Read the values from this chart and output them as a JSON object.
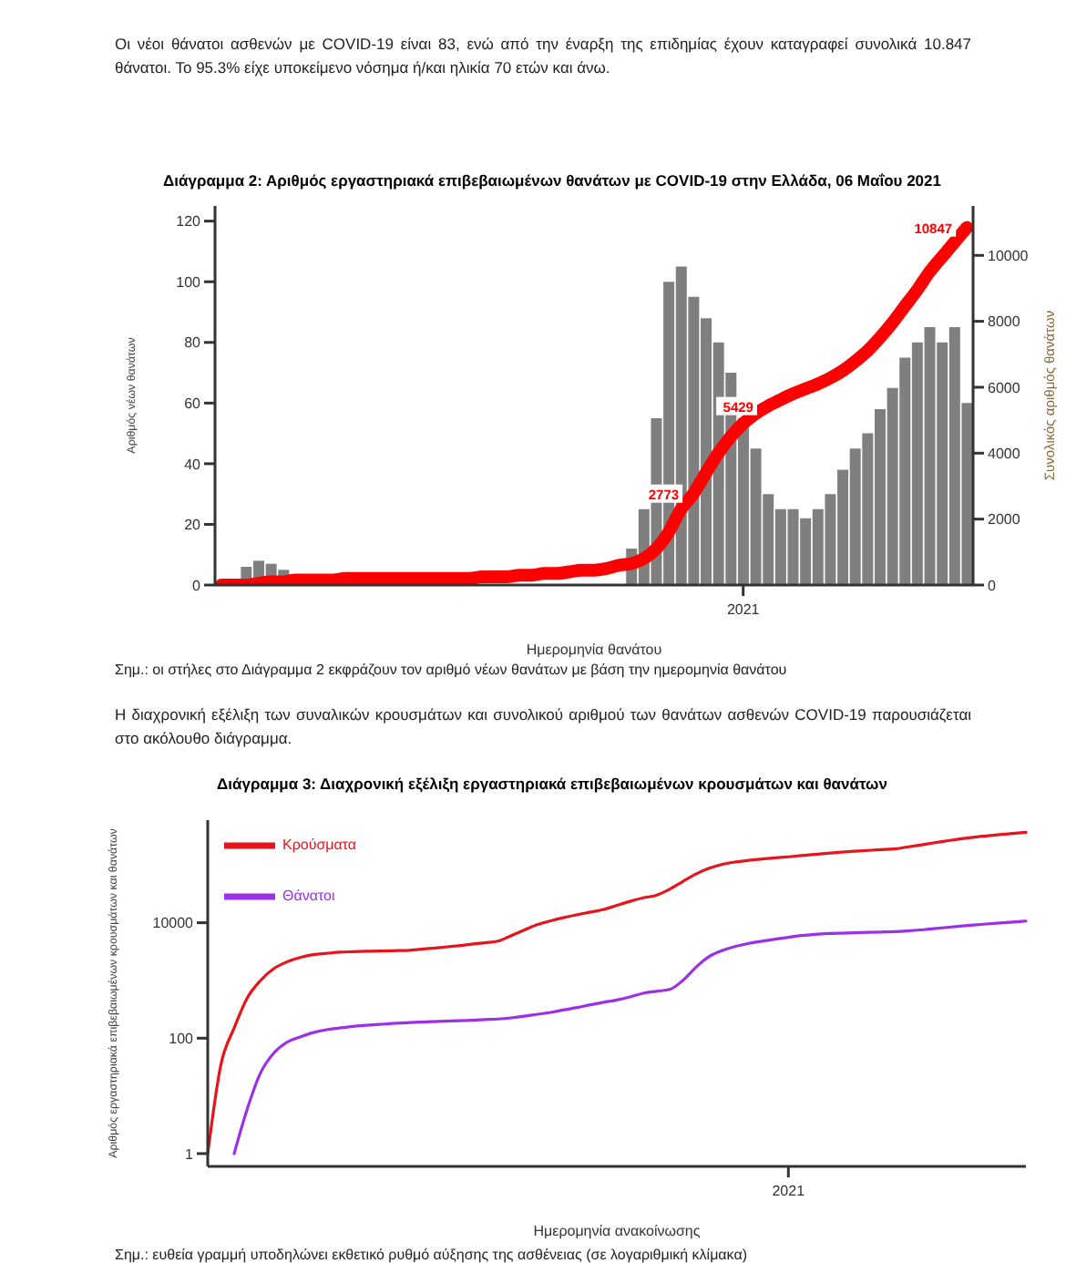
{
  "chart_data": [
    {
      "type": "bar",
      "title": "Διάγραμμα 2: Αριθμός εργαστηριακά επιβεβαιωμένων θανάτων με COVID-19 στην Ελλάδα, 06 Μαΐου 2021",
      "xlabel": "Ημερομηνία θανάτου",
      "ylabel": "Αριθμός νέων θανάτων",
      "y2label": "Συνολικός αριθμός θανάτων",
      "annotations": [
        "Οι νέοι θάνατοι ασθενών με COVID-19 είναι 83, ενώ από την έναρξη της επιδημίας έχουν καταγραφεί συνολικά 10.847 θάνατοι. Το 95.3% είχε υποκείμενο νόσημα ή/και ηλικία 70 ετών και άνω.",
        "Σημ.: οι στήλες στο Διάγραμμα 2 εκφράζουν τον αριθμό νέων θανάτων με βάση την ημερομηνία θανάτου"
      ],
      "categories": [
        null,
        null,
        null,
        null,
        null,
        null,
        null,
        null,
        null,
        null,
        null,
        null,
        null,
        null,
        null,
        null,
        null,
        null,
        null,
        null,
        null,
        null,
        null,
        null,
        null,
        null,
        null,
        null,
        null,
        null,
        null,
        null,
        null,
        null,
        null,
        null,
        null,
        null,
        null,
        null,
        null,
        null,
        "2021",
        null,
        null,
        null,
        null,
        null,
        null,
        null,
        null,
        null,
        null,
        null,
        null,
        null,
        null,
        null,
        null,
        null,
        null
      ],
      "series": [
        {
          "color": "#7f7f7f",
          "values": [
            null,
            null,
            6,
            8,
            7,
            5,
            null,
            null,
            null,
            null,
            null,
            null,
            null,
            null,
            null,
            null,
            0,
            null,
            null,
            null,
            null,
            null,
            null,
            null,
            null,
            null,
            null,
            null,
            null,
            null,
            null,
            null,
            null,
            12,
            25,
            55,
            100,
            105,
            95,
            88,
            80,
            70,
            55,
            45,
            30,
            25,
            25,
            22,
            25,
            30,
            38,
            45,
            50,
            58,
            65,
            75,
            80,
            85,
            80,
            85,
            60
          ]
        },
        {
          "type": "line",
          "axis": "y2",
          "color": "#ff0000",
          "values": [
            0,
            0,
            0,
            50,
            100,
            100,
            150,
            150,
            150,
            150,
            200,
            200,
            200,
            200,
            200,
            200,
            200,
            200,
            200,
            200,
            200,
            250,
            250,
            250,
            300,
            300,
            350,
            350,
            400,
            450,
            450,
            500,
            600,
            650,
            800,
            1100,
            1600,
            2300,
            2773,
            3400,
            4000,
            4500,
            4900,
            5200,
            5429,
            5620,
            5800,
            5950,
            6100,
            6280,
            6500,
            6780,
            7100,
            7500,
            7950,
            8450,
            8950,
            9500,
            9950,
            10400,
            10847
          ],
          "value_labels": [
            null,
            null,
            null,
            null,
            null,
            null,
            null,
            null,
            null,
            null,
            null,
            null,
            null,
            null,
            null,
            null,
            null,
            null,
            null,
            null,
            null,
            null,
            null,
            null,
            null,
            null,
            null,
            null,
            null,
            null,
            null,
            null,
            null,
            null,
            null,
            null,
            null,
            null,
            "2773",
            null,
            null,
            null,
            null,
            null,
            "5429",
            null,
            null,
            null,
            null,
            null,
            null,
            null,
            null,
            null,
            null,
            null,
            null,
            null,
            null,
            null,
            "10847"
          ]
        }
      ],
      "ylim": [
        0,
        125
      ],
      "yticks": [
        0,
        20,
        40,
        60,
        80,
        100,
        120
      ],
      "y2lim": [
        0,
        11500
      ],
      "y2ticks": [
        0,
        2000,
        4000,
        6000,
        8000,
        10000
      ],
      "marker": "none"
    },
    {
      "type": "line",
      "title": "Διάγραμμα 3: Διαχρονική εξέλιξη εργαστηριακά επιβεβαιωμένων κρουσμάτων και θανάτων",
      "xlabel": "Ημερομηνία ανακοίνωσης",
      "ylabel": "Αριθμός εργαστηριακά επιβεβαιωμένων κρουσμάτων και θανάτων",
      "annotations": [
        "Η διαχρονική εξέλιξη των συναλικών κρουσμάτων και συνολικού αριθμού των θανάτων ασθενών COVID-19 παρουσιάζεται στο ακόλουθο διάγραμμα.",
        "Σημ.: ευθεία γραμμή υποδηλώνει εκθετικό ρυθμό αύξησης της ασθένειας (σε λογαριθμική κλίμακα)"
      ],
      "categories": [
        null,
        null,
        null,
        null,
        null,
        null,
        null,
        null,
        null,
        null,
        null,
        null,
        null,
        null,
        null,
        null,
        null,
        null,
        null,
        null,
        null,
        null,
        null,
        null,
        null,
        null,
        null,
        null,
        null,
        null,
        null,
        null,
        null,
        null,
        null,
        null,
        null,
        null,
        null,
        null,
        null,
        null,
        null,
        null,
        "2021",
        null,
        null,
        null,
        null,
        null,
        null,
        null,
        null,
        null,
        null,
        null,
        null,
        null,
        null,
        null,
        null,
        null,
        null
      ],
      "series": [
        {
          "name": "Κρούσματα",
          "color": "#e8141b",
          "values": [
            1,
            35,
            150,
            500,
            1000,
            1600,
            2100,
            2500,
            2800,
            2950,
            3100,
            3150,
            3200,
            3250,
            3280,
            3300,
            3450,
            3600,
            3800,
            4000,
            4250,
            4500,
            4800,
            6000,
            7500,
            9300,
            10800,
            12300,
            13800,
            15300,
            17000,
            20000,
            23500,
            27000,
            30000,
            38000,
            52000,
            70000,
            88000,
            103000,
            113000,
            121000,
            127000,
            133000,
            139000,
            146000,
            153000,
            160000,
            167000,
            173000,
            179000,
            185000,
            190000,
            205000,
            222000,
            242000,
            262000,
            283000,
            303000,
            320000,
            337000,
            353000,
            370000
          ]
        },
        {
          "name": "Θάνατοι",
          "color": "#9b30e8",
          "values": [
            null,
            null,
            1,
            6,
            25,
            55,
            85,
            105,
            125,
            140,
            150,
            160,
            167,
            173,
            180,
            185,
            190,
            193,
            197,
            200,
            205,
            210,
            215,
            225,
            240,
            260,
            280,
            310,
            340,
            380,
            420,
            460,
            520,
            600,
            650,
            700,
            1000,
            1700,
            2600,
            3300,
            3900,
            4400,
            4800,
            5200,
            5600,
            6000,
            6300,
            6500,
            6600,
            6700,
            6800,
            6900,
            7000,
            7200,
            7500,
            7900,
            8300,
            8700,
            9100,
            9500,
            9900,
            10300,
            10700
          ]
        }
      ],
      "log": "y",
      "ylim": [
        0.6,
        600000
      ],
      "yticks": [
        1,
        100,
        10000
      ],
      "legend": "top left",
      "marker": "none"
    }
  ]
}
